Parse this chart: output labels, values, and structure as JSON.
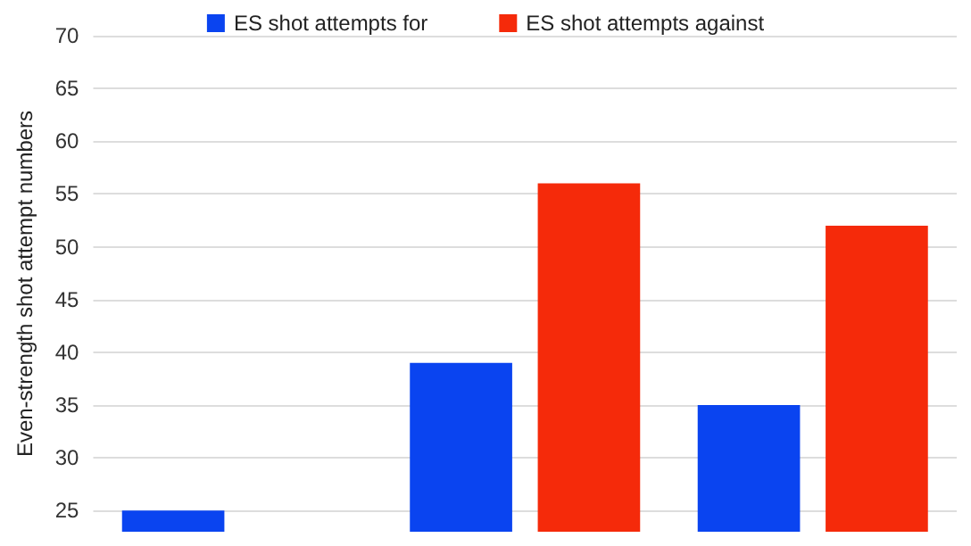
{
  "chart_data": {
    "type": "bar",
    "ylabel": "Even-strength shot attempt numbers",
    "categories": [
      null,
      null,
      null
    ],
    "series": [
      {
        "name": "ES shot attempts for",
        "color": "#0a44f0",
        "values": [
          25,
          39,
          35
        ]
      },
      {
        "name": "ES shot attempts against",
        "color": "#f52a0a",
        "values": [
          null,
          56,
          52
        ]
      }
    ],
    "ylim": [
      23,
      70
    ],
    "yticks": [
      25,
      30,
      35,
      40,
      45,
      50,
      55,
      60,
      65,
      70
    ],
    "grid": "y",
    "legend": "top"
  }
}
